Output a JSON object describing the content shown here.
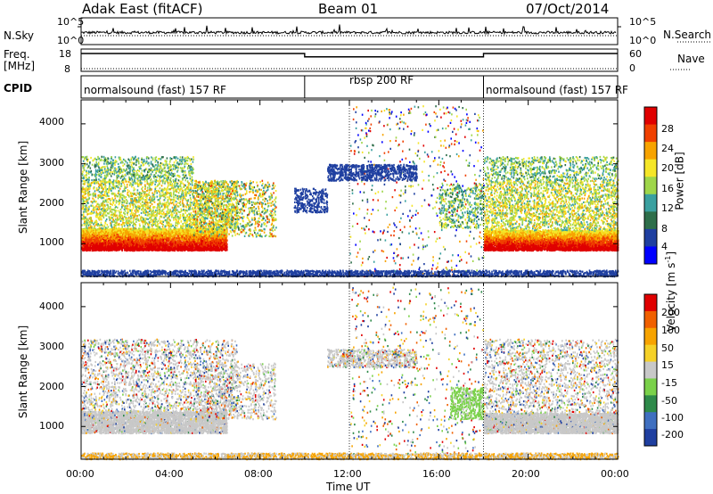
{
  "header": {
    "title": "Adak East (fitACF)",
    "beam": "Beam 01",
    "date": "07/Oct/2014"
  },
  "summary": {
    "nsky_label": "N.Sky",
    "nsearch_label": "N.Search",
    "noise_ticks": [
      "10^5",
      "10^0"
    ],
    "freq_label": "Freq.",
    "freq_unit": "[MHz]",
    "freq_ticks": [
      "18",
      "8"
    ],
    "nave_label": "Nave",
    "nave_ticks": [
      "60",
      "0"
    ],
    "cpid_label": "CPID",
    "modes": [
      "normalsound (fast) 157 RF",
      "rbsp 200 RF",
      "normalsound (fast) 157 RF"
    ]
  },
  "colors": {
    "power_scale": [
      "#0000ff",
      "#1f3fa0",
      "#2e6e4a",
      "#3aa0a0",
      "#9fd64a",
      "#f5e628",
      "#f7a300",
      "#f04000",
      "#e00000"
    ],
    "velocity_scale": [
      "#1f3fa0",
      "#3f6fc0",
      "#2e8a4a",
      "#7ad14a",
      "#c8c8c8",
      "#f5d128",
      "#f7a300",
      "#f06000",
      "#e00000"
    ]
  },
  "chart_data": [
    {
      "type": "line",
      "name": "noise",
      "series": [
        {
          "name": "N.Sky",
          "style": "solid"
        },
        {
          "name": "N.Search",
          "style": "dotted"
        }
      ],
      "y_ticks": [
        "10^5",
        "10^0"
      ]
    },
    {
      "type": "line",
      "name": "frequency",
      "ylabel": "Freq. [MHz]",
      "ylim": [
        8,
        18
      ],
      "y_ticks": [
        "18",
        "8"
      ],
      "y2label": "Nave",
      "y2_ticks": [
        "60",
        "0"
      ],
      "series": [
        {
          "name": "Freq.",
          "x": [
            0,
            10,
            10,
            18,
            18,
            24
          ],
          "y": [
            16,
            16,
            14.5,
            14.5,
            16,
            16
          ]
        },
        {
          "name": "Nave",
          "style": "dotted",
          "x": [
            0,
            24
          ],
          "y": [
            10,
            10
          ]
        }
      ]
    },
    {
      "type": "heatmap",
      "name": "power",
      "xlabel": "Time UT",
      "ylabel": "Slant Range [km]",
      "colorbar_label": "Power [dB]",
      "colorbar_ticks": [
        "28",
        "24",
        "20",
        "16",
        "12",
        "8",
        "4"
      ],
      "x_ticks": [
        "00:00",
        "04:00",
        "08:00",
        "12:00",
        "16:00",
        "20:00",
        "00:00"
      ],
      "y_ticks": [
        "4000",
        "3000",
        "2000",
        "1000"
      ],
      "xlim_hours": [
        0,
        24
      ],
      "ylim_km": [
        180,
        4600
      ]
    },
    {
      "type": "heatmap",
      "name": "velocity",
      "xlabel": "Time UT",
      "ylabel": "Slant Range [km]",
      "colorbar_label": "Velocity [m s-1]",
      "colorbar_ticks": [
        "200",
        "100",
        "50",
        "15",
        "-15",
        "-50",
        "-100",
        "-200"
      ],
      "x_ticks": [
        "00:00",
        "04:00",
        "08:00",
        "12:00",
        "16:00",
        "20:00",
        "00:00"
      ],
      "y_ticks": [
        "4000",
        "3000",
        "2000",
        "1000"
      ],
      "xlim_hours": [
        0,
        24
      ],
      "ylim_km": [
        180,
        4600
      ]
    }
  ],
  "axes": {
    "xlabel": "Time UT",
    "x_ticks": [
      "00:00",
      "04:00",
      "08:00",
      "12:00",
      "16:00",
      "20:00",
      "00:00"
    ],
    "ylabel": "Slant Range [km]",
    "y_ticks": [
      "4000",
      "3000",
      "2000",
      "1000"
    ],
    "power_label": "Power [dB]",
    "velocity_label": "Velocity",
    "velocity_unit": "[m s",
    "velocity_unit_exp": "-1",
    "velocity_unit_close": "]"
  }
}
